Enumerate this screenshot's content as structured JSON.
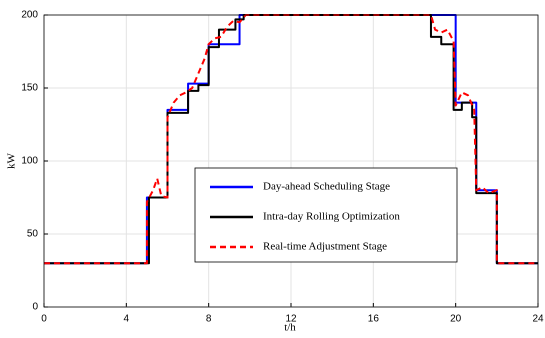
{
  "chart_data": {
    "type": "line",
    "xlabel": "t/h",
    "ylabel": "kW",
    "xlim": [
      0,
      24
    ],
    "xticks": [
      0,
      4,
      8,
      12,
      16,
      20,
      24
    ],
    "ylim": [
      0,
      200
    ],
    "yticks": [
      0,
      50,
      100,
      150,
      200
    ],
    "grid": true,
    "legend": "center",
    "series": [
      {
        "name": "Day-ahead Scheduling Stage",
        "color": "#0000ff",
        "dash": false,
        "x": [
          0,
          5,
          5,
          6,
          6,
          7,
          7,
          8,
          8,
          9.5,
          9.5,
          20,
          20,
          21,
          21,
          22,
          22,
          24
        ],
        "values": [
          30,
          30,
          75,
          75,
          135,
          135,
          153,
          153,
          180,
          180,
          200,
          200,
          140,
          140,
          80,
          80,
          30,
          30
        ]
      },
      {
        "name": "Intra-day Rolling Optimization",
        "color": "#000000",
        "dash": false,
        "x": [
          0,
          5.1,
          5.1,
          6,
          6,
          7,
          7,
          7.5,
          7.5,
          8,
          8,
          8.5,
          8.5,
          9.3,
          9.3,
          9.7,
          9.7,
          18.8,
          18.8,
          19.3,
          19.3,
          19.9,
          19.9,
          20.3,
          20.3,
          20.8,
          20.8,
          21,
          21,
          22,
          22,
          24
        ],
        "values": [
          30,
          30,
          75,
          75,
          133,
          133,
          148,
          148,
          152,
          152,
          178,
          178,
          190,
          190,
          197,
          197,
          200,
          200,
          185,
          185,
          180,
          180,
          135,
          135,
          140,
          140,
          130,
          130,
          78,
          78,
          30,
          30
        ]
      },
      {
        "name": "Real-time Adjustment Stage",
        "color": "#ff0000",
        "dash": true,
        "x": [
          0,
          5,
          5,
          5.3,
          5.5,
          5.7,
          6,
          6,
          6.3,
          6.6,
          6.9,
          7.2,
          7.5,
          7.8,
          8,
          8.3,
          8.6,
          8.9,
          9.2,
          9.5,
          9.8,
          10,
          18.8,
          19,
          19.3,
          19.6,
          19.9,
          20,
          20.3,
          20.6,
          20.9,
          21,
          21.3,
          21.6,
          22,
          22,
          24
        ],
        "values": [
          30,
          30,
          72,
          80,
          88,
          76,
          75,
          130,
          140,
          145,
          147,
          150,
          160,
          170,
          180,
          184,
          185,
          192,
          196,
          195,
          200,
          200,
          200,
          190,
          188,
          190,
          182,
          138,
          147,
          145,
          135,
          80,
          82,
          78,
          80,
          30,
          30
        ]
      }
    ]
  }
}
